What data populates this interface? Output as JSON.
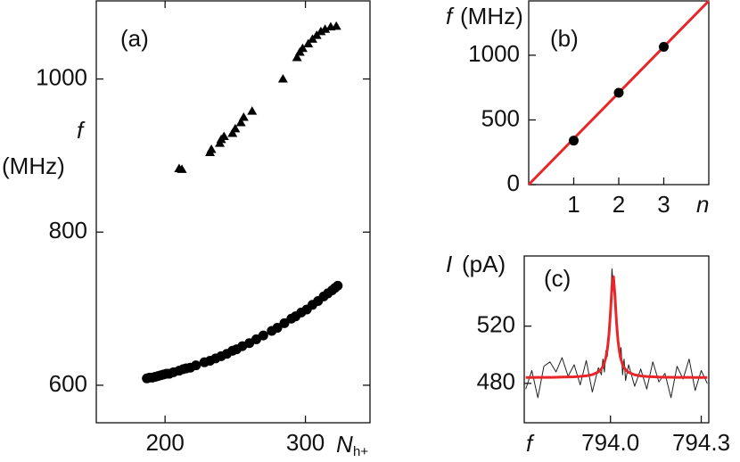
{
  "chart_data": [
    {
      "type": "scatter",
      "panel_label": "(a)",
      "ylabel": "f",
      "ylabel_unit": "(MHz)",
      "xlabel": "N",
      "xlabel_sub": "h+",
      "xlim": [
        151,
        346
      ],
      "ylim": [
        551,
        1102
      ],
      "xticks": [
        200,
        300
      ],
      "yticks": [
        600,
        800,
        1000
      ],
      "mirror_ticks": true,
      "series": [
        {
          "marker": "circle",
          "color": "#000000",
          "x": [
            187,
            189,
            191,
            193,
            195,
            197,
            199,
            201,
            203,
            206,
            210,
            213,
            215,
            218,
            222,
            228,
            232,
            236,
            240,
            244,
            248,
            251,
            255,
            260,
            265,
            270,
            276,
            280,
            285,
            290,
            293,
            297,
            301,
            305,
            309,
            313,
            316,
            319,
            321,
            323
          ],
          "values": [
            609,
            610,
            610,
            611,
            612,
            613,
            614,
            615,
            615,
            617,
            619,
            621,
            622,
            623,
            626,
            630,
            632,
            635,
            638,
            641,
            645,
            647,
            651,
            655,
            660,
            665,
            671,
            675,
            681,
            687,
            690,
            695,
            699,
            705,
            710,
            716,
            720,
            724,
            727,
            730
          ]
        },
        {
          "marker": "triangle",
          "color": "#000000",
          "x": [
            210,
            212,
            232,
            233,
            239,
            240,
            242,
            248,
            250,
            254,
            256,
            262,
            284,
            294,
            296,
            298,
            302,
            305,
            308,
            311,
            314,
            318,
            322
          ],
          "values": [
            883,
            882,
            904,
            908,
            916,
            921,
            925,
            929,
            935,
            943,
            950,
            958,
            1000,
            1028,
            1035,
            1040,
            1046,
            1052,
            1057,
            1062,
            1065,
            1068,
            1069
          ]
        }
      ]
    },
    {
      "type": "scatter",
      "panel_label": "(b)",
      "ylabel": "f",
      "ylabel_unit": "(MHz)",
      "xlabel": "n",
      "xlim": [
        0,
        4
      ],
      "ylim": [
        0,
        1420
      ],
      "xticks": [
        1,
        2,
        3
      ],
      "yticks": [
        0,
        500,
        1000
      ],
      "mirror_ticks": false,
      "series": [
        {
          "marker": "line",
          "color": "#e8262a",
          "x": [
            0,
            4
          ],
          "values": [
            0,
            1420
          ]
        },
        {
          "marker": "circle",
          "color": "#000000",
          "x": [
            1,
            2,
            3
          ],
          "values": [
            340,
            710,
            1065
          ]
        }
      ]
    },
    {
      "type": "line",
      "panel_label": "(c)",
      "ylabel": "I",
      "ylabel_unit": "(pA)",
      "xlabel": "f",
      "xlim": [
        793.715,
        794.325
      ],
      "ylim": [
        452.5,
        569
      ],
      "xticks": [
        {
          "value": 794.0,
          "label": "794.0"
        },
        {
          "value": 794.3,
          "label": "794.3"
        }
      ],
      "yticks": [
        480,
        520
      ],
      "mirror_ticks": false,
      "x": [
        793.72,
        793.74,
        793.76,
        793.78,
        793.8,
        793.82,
        793.84,
        793.86,
        793.88,
        793.9,
        793.92,
        793.94,
        793.96,
        793.97,
        793.975,
        793.98,
        793.985,
        793.99,
        793.995,
        794.0,
        794.005,
        794.01,
        794.015,
        794.02,
        794.025,
        794.03,
        794.035,
        794.04,
        794.045,
        794.05,
        794.06,
        794.08,
        794.1,
        794.12,
        794.14,
        794.16,
        794.18,
        794.2,
        794.22,
        794.24,
        794.26,
        794.28,
        794.3,
        794.32
      ],
      "series": [
        {
          "marker": "line",
          "color": "#222222",
          "width": 1,
          "values": [
            476,
            489,
            470,
            492,
            495,
            488,
            498,
            485,
            493,
            479,
            496,
            474,
            491,
            486,
            497,
            488,
            503,
            499,
            520,
            534,
            560,
            545,
            548,
            515,
            512,
            498,
            505,
            486,
            497,
            482,
            493,
            478,
            490,
            476,
            495,
            481,
            487,
            470,
            492,
            483,
            497,
            475,
            489,
            480
          ]
        },
        {
          "marker": "line",
          "color": "#e8262a",
          "width": 3,
          "values": [
            484.1,
            484.1,
            484.2,
            484.2,
            484.2,
            484.3,
            484.4,
            484.5,
            484.6,
            484.9,
            485.3,
            486.1,
            488.0,
            490.1,
            491.9,
            494.4,
            498.2,
            504.2,
            514.1,
            529.4,
            547.9,
            554.5,
            540.8,
            522.6,
            509.5,
            501.5,
            496.5,
            493.3,
            491.1,
            489.6,
            487.7,
            486.0,
            485.2,
            484.8,
            484.6,
            484.4,
            484.3,
            484.3,
            484.2,
            484.2,
            484.2,
            484.1,
            484.1,
            484.1
          ]
        }
      ]
    }
  ]
}
